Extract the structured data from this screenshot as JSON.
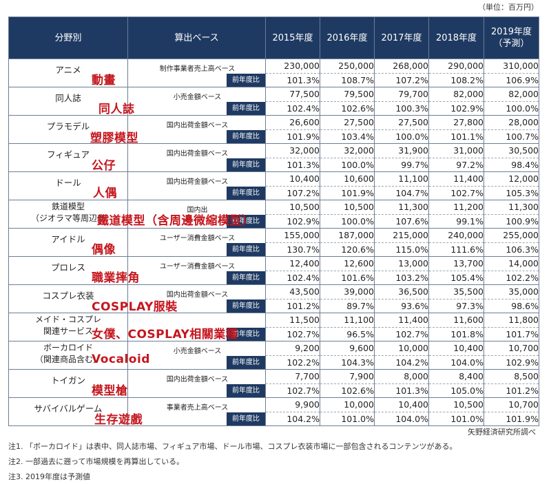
{
  "unit": "（単位：百万円）",
  "headers": {
    "category": "分野別",
    "basis": "算出ベース",
    "y2015": "2015年度",
    "y2016": "2016年度",
    "y2017": "2017年度",
    "y2018": "2018年度",
    "y2019a": "2019年度",
    "y2019b": "（予測）"
  },
  "yoy_label": "前年度比",
  "rows": [
    {
      "name": "アニメ",
      "name2": "",
      "zh": "動畫",
      "basis": "制作事業者売上高ベース",
      "values": [
        "230,000",
        "250,000",
        "268,000",
        "290,000",
        "310,000"
      ],
      "yoy": [
        "101.3%",
        "108.7%",
        "107.2%",
        "108.2%",
        "106.9%"
      ]
    },
    {
      "name": "同人誌",
      "name2": "",
      "zh": "同人誌",
      "basis": "小売金額ベース",
      "values": [
        "77,500",
        "79,500",
        "79,700",
        "82,000",
        "82,000"
      ],
      "yoy": [
        "102.4%",
        "102.6%",
        "100.3%",
        "102.9%",
        "100.0%"
      ]
    },
    {
      "name": "プラモデル",
      "name2": "",
      "zh": "塑膠模型",
      "basis": "国内出荷金額ベース",
      "values": [
        "26,600",
        "27,500",
        "27,500",
        "27,800",
        "28,000"
      ],
      "yoy": [
        "101.9%",
        "103.4%",
        "100.0%",
        "101.1%",
        "100.7%"
      ]
    },
    {
      "name": "フィギュア",
      "name2": "",
      "zh": "公仔",
      "basis": "国内出荷金額ベース",
      "values": [
        "32,000",
        "32,000",
        "31,900",
        "31,000",
        "30,500"
      ],
      "yoy": [
        "101.3%",
        "100.0%",
        "99.7%",
        "97.2%",
        "98.4%"
      ]
    },
    {
      "name": "ドール",
      "name2": "",
      "zh": "人偶",
      "basis": "国内出荷金額ベース",
      "values": [
        "10,400",
        "10,600",
        "11,100",
        "11,400",
        "12,000"
      ],
      "yoy": [
        "107.2%",
        "101.9%",
        "104.7%",
        "102.7%",
        "105.3%"
      ]
    },
    {
      "name": "鉄道模型",
      "name2": "（ジオラマ等周辺商",
      "zh": "鐵道模型（含周邊微縮模型）",
      "basis": "国内出",
      "values": [
        "10,500",
        "10,500",
        "11,300",
        "11,200",
        "11,300"
      ],
      "yoy": [
        "102.9%",
        "100.0%",
        "107.6%",
        "99.1%",
        "100.9%"
      ]
    },
    {
      "name": "アイドル",
      "name2": "",
      "zh": "偶像",
      "basis": "ユーザー消費金額ベース",
      "values": [
        "155,000",
        "187,000",
        "215,000",
        "240,000",
        "255,000"
      ],
      "yoy": [
        "130.7%",
        "120.6%",
        "115.0%",
        "111.6%",
        "106.3%"
      ]
    },
    {
      "name": "プロレス",
      "name2": "",
      "zh": "職業摔角",
      "basis": "ユーザー消費金額ベース",
      "values": [
        "12,400",
        "12,600",
        "13,000",
        "13,700",
        "14,000"
      ],
      "yoy": [
        "102.4%",
        "101.6%",
        "103.2%",
        "105.4%",
        "102.2%"
      ]
    },
    {
      "name": "コスプレ衣装",
      "name2": "",
      "zh": "COSPLAY服裝",
      "basis": "国内出荷金額ベース",
      "values": [
        "43,500",
        "39,000",
        "36,500",
        "35,500",
        "35,000"
      ],
      "yoy": [
        "101.2%",
        "89.7%",
        "93.6%",
        "97.3%",
        "98.6%"
      ]
    },
    {
      "name": "メイド・コスプレ",
      "name2": "関連サービス",
      "zh": "女僕、COSPLAY相關業種",
      "basis": "",
      "values": [
        "11,500",
        "11,100",
        "11,400",
        "11,600",
        "11,800"
      ],
      "yoy": [
        "102.7%",
        "96.5%",
        "102.7%",
        "101.8%",
        "101.7%"
      ]
    },
    {
      "name": "ボーカロイド",
      "name2": "（関連商品含む）",
      "zh": "Vocaloid",
      "basis": "小売金額ベース",
      "values": [
        "9,200",
        "9,600",
        "10,000",
        "10,400",
        "10,700"
      ],
      "yoy": [
        "102.2%",
        "104.3%",
        "104.2%",
        "104.0%",
        "102.9%"
      ]
    },
    {
      "name": "トイガン",
      "name2": "",
      "zh": "模型槍",
      "basis": "国内出荷金額ベース",
      "values": [
        "7,700",
        "7,900",
        "8,000",
        "8,400",
        "8,500"
      ],
      "yoy": [
        "102.7%",
        "102.6%",
        "101.3%",
        "105.0%",
        "101.2%"
      ]
    },
    {
      "name": "サバイバルゲーム",
      "name2": "",
      "zh": "生存遊戲",
      "basis": "事業者売上高ベース",
      "values": [
        "9,900",
        "10,000",
        "10,400",
        "10,500",
        "10,700"
      ],
      "yoy": [
        "104.2%",
        "101.0%",
        "104.0%",
        "101.0%",
        "101.9%"
      ]
    }
  ],
  "source": "矢野経済研究所調べ",
  "notes": [
    "注1. 「ボーカロイド」は表中、同人誌市場、フィギュア市場、ドール市場、コスプレ衣装市場に一部包含されるコンテンツがある。",
    "注2. 一部過去に遡って市場規模を再算出している。",
    "注3. 2019年度は予測値"
  ]
}
